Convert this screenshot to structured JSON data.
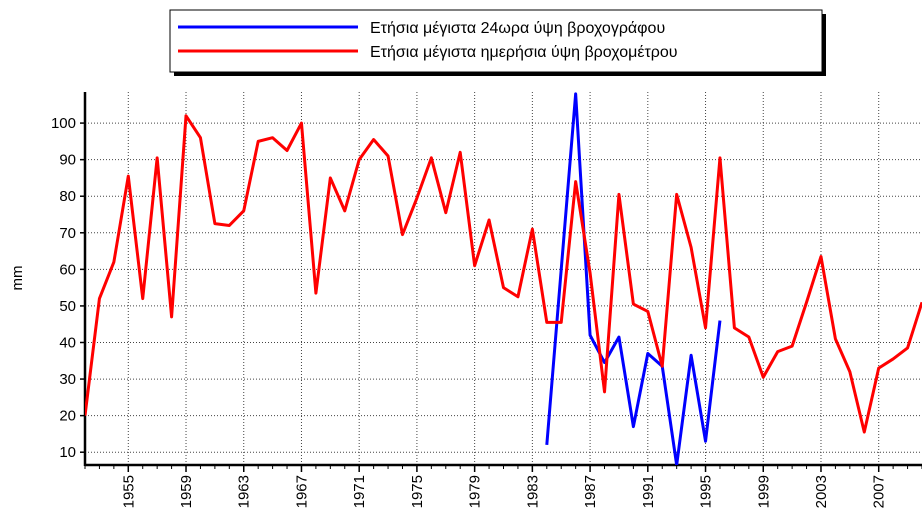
{
  "chart_data": {
    "type": "line",
    "y_label": "mm",
    "x": [
      1952,
      1953,
      1954,
      1955,
      1956,
      1957,
      1958,
      1959,
      1960,
      1961,
      1962,
      1963,
      1964,
      1965,
      1966,
      1967,
      1968,
      1969,
      1970,
      1971,
      1972,
      1973,
      1974,
      1975,
      1976,
      1977,
      1978,
      1979,
      1980,
      1981,
      1982,
      1983,
      1984,
      1985,
      1986,
      1987,
      1988,
      1989,
      1990,
      1991,
      1992,
      1993,
      1994,
      1995,
      1996,
      1997,
      1998,
      1999,
      2000,
      2001,
      2002,
      2003,
      2004,
      2005,
      2006,
      2007,
      2008,
      2009,
      2010
    ],
    "series": [
      {
        "name": "Ετήσια μέγιστα 24ωρα ύψη βροχογράφου",
        "color": "#0000ff",
        "values": [
          null,
          null,
          null,
          null,
          null,
          null,
          null,
          null,
          null,
          null,
          null,
          null,
          null,
          null,
          null,
          null,
          null,
          null,
          null,
          null,
          null,
          null,
          null,
          null,
          null,
          null,
          null,
          null,
          null,
          null,
          null,
          null,
          12,
          60,
          108,
          42,
          34.5,
          41.5,
          17,
          37,
          33.5,
          6.5,
          36.5,
          13,
          46,
          null,
          null,
          null,
          null,
          null,
          null,
          null,
          null,
          null,
          null,
          null,
          null,
          null,
          null
        ]
      },
      {
        "name": "Ετήσια μέγιστα ημερήσια ύψη βροχομέτρου",
        "color": "#ff0000",
        "values": [
          20,
          52,
          62,
          85.5,
          52,
          90.5,
          47,
          102,
          96,
          72.5,
          72,
          76,
          95,
          96,
          92.5,
          100,
          53.5,
          85,
          76,
          90,
          95.5,
          91,
          69.5,
          79.5,
          90.5,
          75.5,
          92,
          61,
          73.5,
          55,
          52.5,
          71,
          45.5,
          45.5,
          84,
          59,
          26.5,
          80.5,
          50.5,
          48.5,
          33.5,
          80.5,
          66,
          44,
          90.5,
          44,
          41.5,
          30.5,
          37.5,
          39,
          51,
          63.5,
          41,
          32,
          15.5,
          33,
          35.5,
          38.5,
          51
        ]
      }
    ],
    "xlim": [
      1952,
      2010
    ],
    "xticks": [
      1955,
      1959,
      1963,
      1967,
      1971,
      1975,
      1979,
      1983,
      1987,
      1991,
      1995,
      1999,
      2003,
      2007
    ],
    "ylim": [
      6.5,
      108.5
    ],
    "yticks": [
      10,
      20,
      30,
      40,
      50,
      60,
      70,
      80,
      90,
      100
    ],
    "grid": true,
    "legend": "top"
  }
}
